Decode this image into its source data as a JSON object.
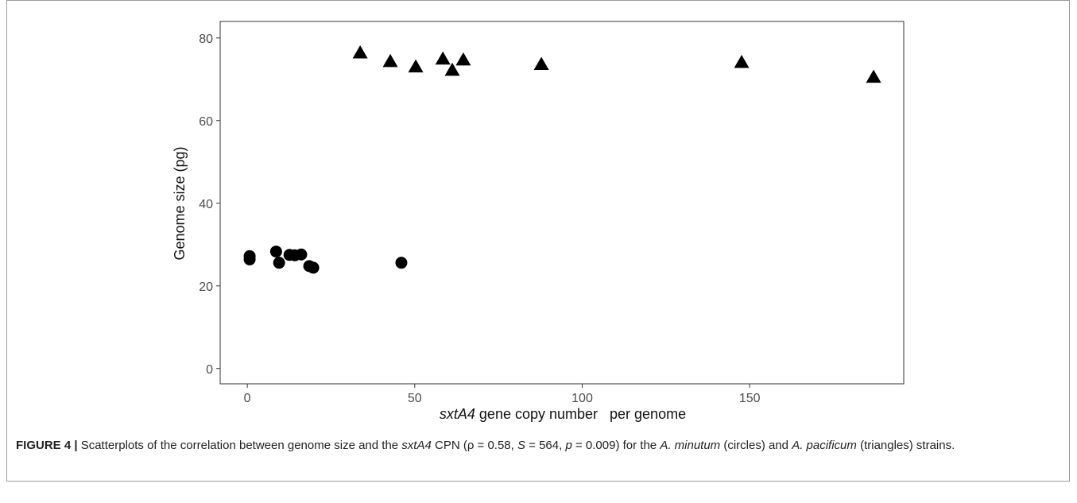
{
  "chart_data": {
    "type": "scatter",
    "xlabel": [
      "sxtA4",
      " gene copy number   per genome"
    ],
    "ylabel": "Genome size (pg)",
    "xlim": [
      -8.1,
      196
    ],
    "ylim": [
      -3.7,
      84
    ],
    "xticks": [
      0,
      50,
      100,
      150
    ],
    "yticks": [
      0,
      20,
      40,
      60,
      80
    ],
    "grid": false,
    "series": [
      {
        "marker": "circle",
        "color": "#000000",
        "x": [
          0.7,
          0.7,
          8.6,
          9.5,
          12.6,
          14.2,
          16.1,
          18.5,
          19.7,
          46.0
        ],
        "y": [
          27.2,
          26.4,
          28.3,
          25.6,
          27.5,
          27.4,
          27.6,
          24.8,
          24.4,
          25.6
        ]
      },
      {
        "marker": "triangle",
        "color": "#000000",
        "x": [
          33.7,
          42.7,
          50.3,
          58.4,
          61.2,
          64.5,
          87.8,
          147.6,
          187.0
        ],
        "y": [
          76.5,
          74.4,
          73.1,
          75.0,
          72.3,
          74.8,
          73.7,
          74.2,
          70.6
        ]
      }
    ]
  },
  "caption": {
    "label": "FIGURE 4 |",
    "parts": [
      " Scatterplots of the correlation between genome size and the ",
      "sxtA4",
      " CPN (ρ = 0.58, ",
      "S",
      " = 564, ",
      "p",
      " = 0.009) for the ",
      "A. minutum",
      " (circles) and ",
      "A. pacificum",
      " (triangles) strains."
    ]
  }
}
